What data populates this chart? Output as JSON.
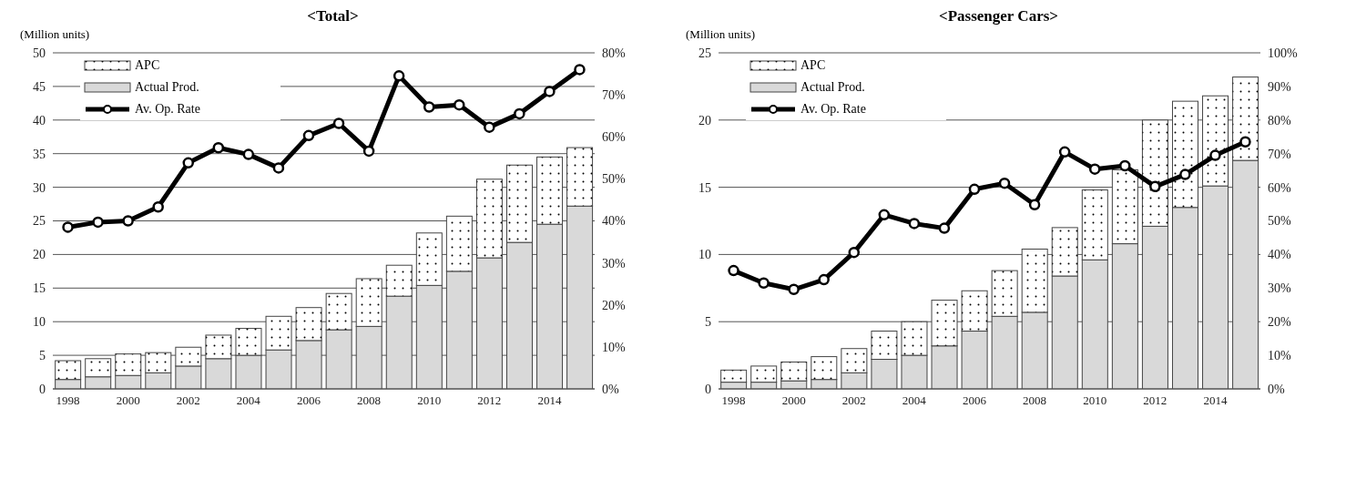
{
  "chart_data": [
    {
      "type": "bar",
      "title": "<Total>",
      "ylabel": "(Million units)",
      "stacked": true,
      "legend": "top left",
      "grid": "y",
      "marker": "circle",
      "categories": [
        "1998",
        null,
        "2000",
        null,
        "2002",
        null,
        "2004",
        null,
        "2006",
        null,
        "2008",
        null,
        "2010",
        null,
        "2012",
        null,
        "2014",
        null
      ],
      "series": [
        {
          "name": "Actual Prod.",
          "color": "#d9d9d9",
          "values": [
            1.4,
            1.8,
            2.0,
            2.4,
            3.4,
            4.5,
            5.0,
            5.8,
            7.2,
            8.8,
            9.3,
            13.8,
            15.4,
            17.5,
            19.5,
            21.8,
            24.5,
            27.2
          ]
        },
        {
          "name": "APC",
          "color": "#ffffff",
          "values": [
            2.8,
            2.7,
            3.2,
            3.0,
            2.8,
            3.5,
            4.0,
            5.0,
            4.9,
            5.4,
            7.1,
            4.6,
            7.8,
            8.2,
            11.7,
            11.5,
            10.0,
            8.7
          ]
        },
        {
          "name": "Av. Op. Rate",
          "type": "line",
          "axis": "y2",
          "color": "#000000",
          "values": [
            38.5,
            39.7,
            40.0,
            43.3,
            53.8,
            57.4,
            55.8,
            52.6,
            60.3,
            63.2,
            56.6,
            74.5,
            67.1,
            67.6,
            62.3,
            65.5,
            70.8,
            76.0
          ]
        }
      ],
      "ylim": [
        0,
        50
      ],
      "yticks": [
        0,
        5,
        10,
        15,
        20,
        25,
        30,
        35,
        40,
        45,
        50
      ],
      "y2lim": [
        0,
        80
      ],
      "y2ticks": [
        {
          "value": 0,
          "label": "0%"
        },
        {
          "value": 10,
          "label": "10%"
        },
        {
          "value": 20,
          "label": "20%"
        },
        {
          "value": 30,
          "label": "30%"
        },
        {
          "value": 40,
          "label": "40%"
        },
        {
          "value": 50,
          "label": "50%"
        },
        {
          "value": 60,
          "label": "60%"
        },
        {
          "value": 70,
          "label": "70%"
        },
        {
          "value": 80,
          "label": "80%"
        }
      ]
    },
    {
      "type": "bar",
      "title": "<Passenger Cars>",
      "ylabel": "(Million units)",
      "stacked": true,
      "legend": "top left",
      "grid": "y",
      "marker": "circle",
      "categories": [
        "1998",
        null,
        "2000",
        null,
        "2002",
        null,
        "2004",
        null,
        "2006",
        null,
        "2008",
        null,
        "2010",
        null,
        "2012",
        null,
        "2014",
        null
      ],
      "series": [
        {
          "name": "Actual Prod.",
          "color": "#d9d9d9",
          "values": [
            0.5,
            0.5,
            0.6,
            0.7,
            1.2,
            2.2,
            2.5,
            3.2,
            4.3,
            5.4,
            5.7,
            8.4,
            9.6,
            10.8,
            12.1,
            13.5,
            15.1,
            17.0
          ]
        },
        {
          "name": "APC",
          "color": "#ffffff",
          "values": [
            0.9,
            1.2,
            1.4,
            1.7,
            1.8,
            2.1,
            2.5,
            3.4,
            3.0,
            3.4,
            4.7,
            3.6,
            5.2,
            5.5,
            7.9,
            7.9,
            6.7,
            6.2
          ]
        },
        {
          "name": "Av. Op. Rate",
          "type": "line",
          "axis": "y2",
          "color": "#000000",
          "values": [
            35.2,
            31.5,
            29.6,
            32.5,
            40.6,
            51.8,
            49.2,
            47.8,
            59.4,
            61.2,
            54.8,
            70.5,
            65.4,
            66.4,
            60.2,
            63.8,
            69.5,
            73.5
          ]
        }
      ],
      "ylim": [
        0,
        25
      ],
      "yticks": [
        0,
        5,
        10,
        15,
        20,
        25
      ],
      "y2lim": [
        0,
        100
      ],
      "y2ticks": [
        {
          "value": 0,
          "label": "0%"
        },
        {
          "value": 10,
          "label": "10%"
        },
        {
          "value": 20,
          "label": "20%"
        },
        {
          "value": 30,
          "label": "30%"
        },
        {
          "value": 40,
          "label": "40%"
        },
        {
          "value": 50,
          "label": "50%"
        },
        {
          "value": 60,
          "label": "60%"
        },
        {
          "value": 70,
          "label": "70%"
        },
        {
          "value": 80,
          "label": "80%"
        },
        {
          "value": 90,
          "label": "90%"
        },
        {
          "value": 100,
          "label": "100%"
        }
      ]
    }
  ]
}
